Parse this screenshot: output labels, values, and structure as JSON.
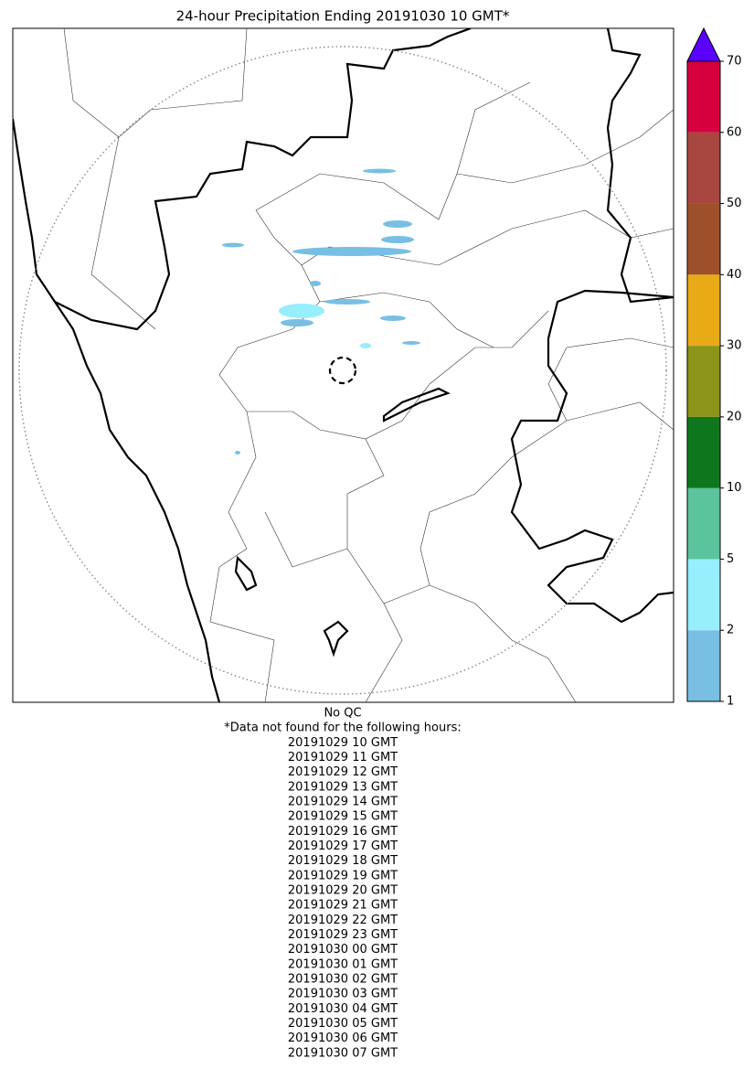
{
  "title": "24-hour Precipitation Ending 20191030 10 GMT*",
  "colorbar": {
    "ticks": [
      1,
      2,
      5,
      10,
      20,
      30,
      40,
      50,
      60,
      70
    ],
    "colors": [
      "#78bfe3",
      "#97eefc",
      "#5cc49c",
      "#0e761c",
      "#8c9519",
      "#e8ab17",
      "#9e502a",
      "#a8473f",
      "#d6003f"
    ],
    "extend_color": "#5a00ff"
  },
  "footer": {
    "note": "No QC",
    "heading": "*Data not found for the following hours:",
    "missing_hours": [
      "20191029 10 GMT",
      "20191029 11 GMT",
      "20191029 12 GMT",
      "20191029 13 GMT",
      "20191029 14 GMT",
      "20191029 15 GMT",
      "20191029 16 GMT",
      "20191029 17 GMT",
      "20191029 18 GMT",
      "20191029 19 GMT",
      "20191029 20 GMT",
      "20191029 21 GMT",
      "20191029 22 GMT",
      "20191029 23 GMT",
      "20191030 00 GMT",
      "20191030 01 GMT",
      "20191030 02 GMT",
      "20191030 03 GMT",
      "20191030 04 GMT",
      "20191030 05 GMT",
      "20191030 06 GMT",
      "20191030 07 GMT"
    ]
  }
}
